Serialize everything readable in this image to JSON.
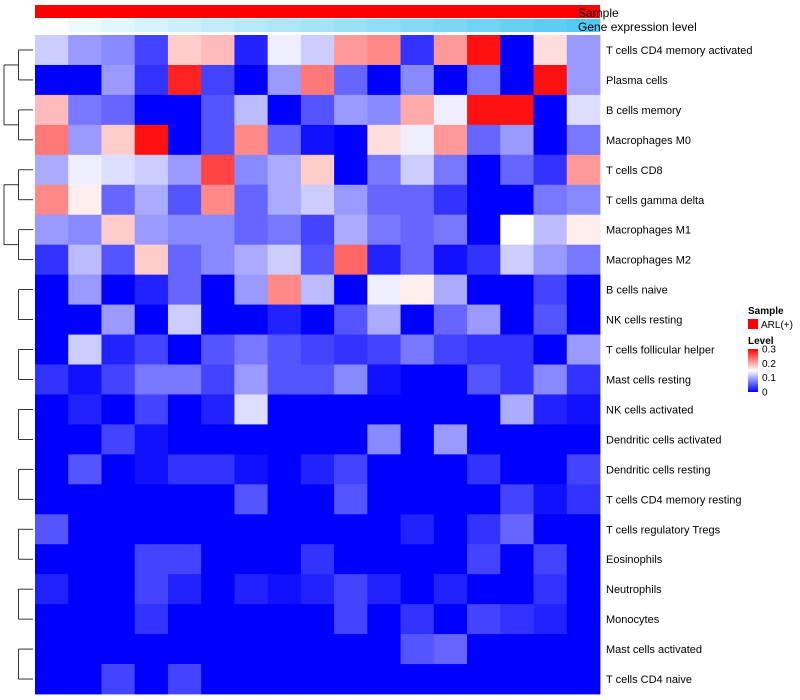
{
  "chart_data": {
    "type": "heatmap",
    "title": "",
    "xlabel": "",
    "ylabel": "",
    "annotations": [
      {
        "name": "Sample",
        "kind": "categorical",
        "value": "ARL(+)",
        "color": "#ff0000"
      },
      {
        "name": "Gene expression level",
        "kind": "gradient",
        "low_color": "#ffffff",
        "high_color": "#4ec8f0"
      }
    ],
    "legend": {
      "position": "right",
      "sample_title": "Sample",
      "sample_entry": "ARL(+)",
      "sample_color": "#ff0000",
      "level_title": "Level",
      "level_ticks": [
        "0.3",
        "0.2",
        "0.1",
        "0"
      ],
      "level_tick_values": [
        0.3,
        0.2,
        0.1,
        0
      ],
      "level_range": [
        0,
        0.3
      ]
    },
    "color_scale": {
      "low": "#0000ff",
      "mid": "#ffffff",
      "high": "#ff0000",
      "mid_value": 0.15,
      "range": [
        0,
        0.3
      ]
    },
    "rows": [
      "T cells CD4 memory activated",
      "Plasma cells",
      "B cells memory",
      "Macrophages M0",
      "T cells CD8",
      "T cells gamma delta",
      "Macrophages M1",
      "Macrophages M2",
      "B cells naive",
      "NK cells resting",
      "T cells follicular helper",
      "Mast cells resting",
      "NK cells activated",
      "Dendritic cells activated",
      "Dendritic cells resting",
      "T cells CD4 memory resting",
      "T cells regulatory  Tregs",
      "Eosinophils",
      "Neutrophils",
      "Monocytes",
      "Mast cells activated",
      "T cells CD4 naive"
    ],
    "values": [
      [
        0.12,
        0.09,
        0.08,
        0.04,
        0.18,
        0.19,
        0.02,
        0.14,
        0.12,
        0.21,
        0.22,
        0.03,
        0.21,
        0.29,
        0.0,
        0.17,
        0.09
      ],
      [
        0.0,
        0.0,
        0.09,
        0.03,
        0.28,
        0.04,
        0.0,
        0.09,
        0.23,
        0.06,
        0.0,
        0.08,
        0.0,
        0.07,
        0.0,
        0.29,
        0.09
      ],
      [
        0.19,
        0.07,
        0.06,
        0.0,
        0.0,
        0.05,
        0.11,
        0.0,
        0.05,
        0.09,
        0.08,
        0.2,
        0.14,
        0.29,
        0.29,
        0.0,
        0.13
      ],
      [
        0.23,
        0.09,
        0.18,
        0.29,
        0.0,
        0.05,
        0.22,
        0.06,
        0.01,
        0.0,
        0.17,
        0.14,
        0.21,
        0.06,
        0.09,
        0.0,
        0.07
      ],
      [
        0.1,
        0.14,
        0.13,
        0.12,
        0.09,
        0.26,
        0.08,
        0.1,
        0.18,
        0.0,
        0.07,
        0.12,
        0.07,
        0.0,
        0.06,
        0.03,
        0.21
      ],
      [
        0.22,
        0.16,
        0.06,
        0.1,
        0.05,
        0.22,
        0.06,
        0.1,
        0.12,
        0.09,
        0.06,
        0.06,
        0.03,
        0.0,
        0.0,
        0.07,
        0.08
      ],
      [
        0.09,
        0.08,
        0.18,
        0.09,
        0.08,
        0.08,
        0.06,
        0.07,
        0.04,
        0.1,
        0.07,
        0.06,
        0.07,
        0.0,
        0.15,
        0.11,
        0.16
      ],
      [
        0.03,
        0.11,
        0.05,
        0.18,
        0.06,
        0.08,
        0.1,
        0.12,
        0.05,
        0.24,
        0.02,
        0.06,
        0.01,
        0.03,
        0.12,
        0.09,
        0.07
      ],
      [
        0.0,
        0.09,
        0.0,
        0.02,
        0.06,
        0.0,
        0.09,
        0.22,
        0.11,
        0.0,
        0.14,
        0.16,
        0.1,
        0.0,
        0.0,
        0.04,
        0.0
      ],
      [
        0.0,
        0.0,
        0.09,
        0.0,
        0.12,
        0.0,
        0.0,
        0.02,
        0.0,
        0.05,
        0.1,
        0.0,
        0.06,
        0.09,
        0.0,
        0.05,
        0.0
      ],
      [
        0.0,
        0.12,
        0.02,
        0.04,
        0.0,
        0.05,
        0.07,
        0.05,
        0.04,
        0.03,
        0.04,
        0.07,
        0.04,
        0.03,
        0.03,
        0.0,
        0.09
      ],
      [
        0.03,
        0.01,
        0.04,
        0.07,
        0.07,
        0.04,
        0.09,
        0.05,
        0.05,
        0.08,
        0.01,
        0.0,
        0.0,
        0.05,
        0.03,
        0.08,
        0.03
      ],
      [
        0.0,
        0.02,
        0.0,
        0.04,
        0.0,
        0.02,
        0.13,
        0.0,
        0.0,
        0.0,
        0.0,
        0.0,
        0.0,
        0.0,
        0.1,
        0.02,
        0.01
      ],
      [
        0.0,
        0.0,
        0.04,
        0.01,
        0.0,
        0.0,
        0.0,
        0.0,
        0.0,
        0.0,
        0.08,
        0.0,
        0.09,
        0.0,
        0.0,
        0.0,
        0.0
      ],
      [
        0.0,
        0.05,
        0.0,
        0.01,
        0.03,
        0.03,
        0.01,
        0.0,
        0.02,
        0.04,
        0.0,
        0.0,
        0.0,
        0.03,
        0.0,
        0.0,
        0.04
      ],
      [
        0.0,
        0.0,
        0.0,
        0.0,
        0.0,
        0.0,
        0.05,
        0.0,
        0.0,
        0.05,
        0.0,
        0.0,
        0.0,
        0.0,
        0.04,
        0.01,
        0.03
      ],
      [
        0.05,
        0.0,
        0.0,
        0.0,
        0.0,
        0.0,
        0.0,
        0.0,
        0.0,
        0.0,
        0.0,
        0.02,
        0.0,
        0.03,
        0.06,
        0.0,
        0.0
      ],
      [
        0.0,
        0.0,
        0.0,
        0.04,
        0.04,
        0.0,
        0.0,
        0.0,
        0.03,
        0.0,
        0.0,
        0.0,
        0.0,
        0.04,
        0.0,
        0.04,
        0.0
      ],
      [
        0.02,
        0.0,
        0.0,
        0.04,
        0.02,
        0.0,
        0.02,
        0.01,
        0.02,
        0.04,
        0.02,
        0.0,
        0.02,
        0.0,
        0.0,
        0.03,
        0.0
      ],
      [
        0.0,
        0.0,
        0.0,
        0.03,
        0.0,
        0.0,
        0.0,
        0.0,
        0.0,
        0.04,
        0.0,
        0.03,
        0.0,
        0.04,
        0.03,
        0.02,
        0.0
      ],
      [
        0.0,
        0.0,
        0.0,
        0.0,
        0.0,
        0.0,
        0.0,
        0.0,
        0.0,
        0.0,
        0.0,
        0.05,
        0.06,
        0.0,
        0.0,
        0.0,
        0.0
      ],
      [
        0.0,
        0.0,
        0.04,
        0.0,
        0.04,
        0.0,
        0.0,
        0.0,
        0.0,
        0.0,
        0.0,
        0.0,
        0.0,
        0.0,
        0.0,
        0.0,
        0.0
      ]
    ],
    "column_expression_level": [
      0.0,
      0.1,
      0.17,
      0.23,
      0.29,
      0.34,
      0.4,
      0.46,
      0.51,
      0.57,
      0.63,
      0.69,
      0.74,
      0.8,
      0.86,
      0.91,
      0.97
    ],
    "row_dendrogram": [
      [
        0,
        1
      ],
      [
        2,
        3
      ],
      [
        4,
        5
      ],
      [
        6,
        7
      ],
      [
        24,
        25
      ],
      [
        8,
        9
      ],
      [
        10,
        11
      ],
      [
        12,
        13
      ],
      [
        14,
        15
      ],
      [
        16,
        17
      ],
      [
        18,
        19
      ],
      [
        20,
        21
      ],
      [
        22,
        23
      ]
    ]
  }
}
